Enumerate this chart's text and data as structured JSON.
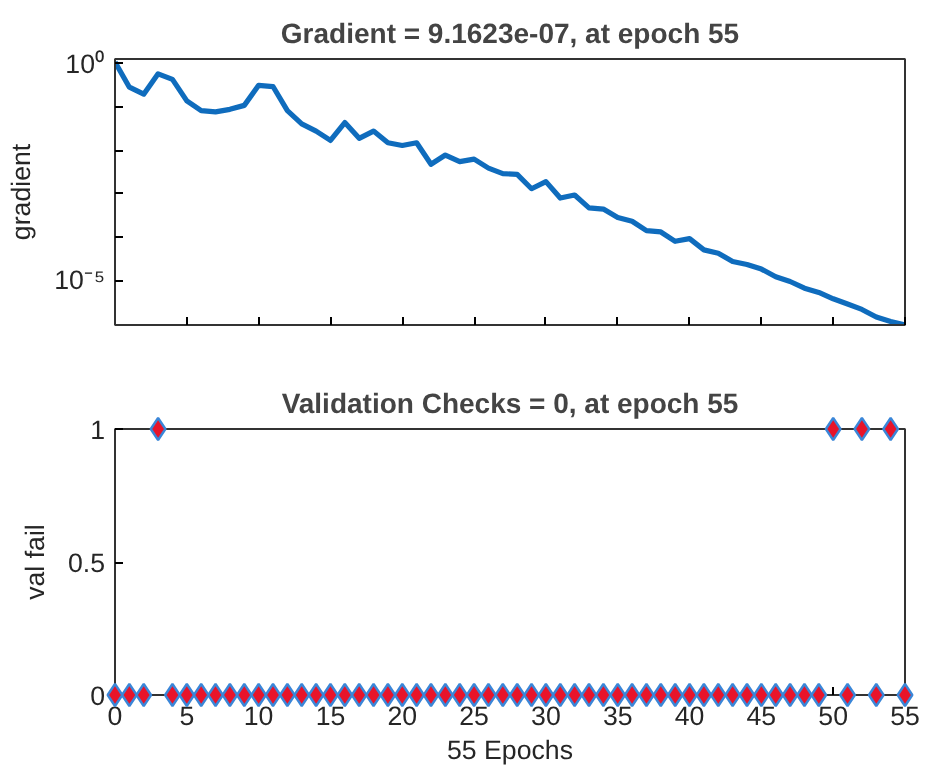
{
  "chart_data": [
    {
      "type": "line",
      "title": "Gradient = 9.1623e-07, at epoch 55",
      "ylabel": "gradient",
      "log": "y",
      "grid": false,
      "tick_labels": "y",
      "xlim": [
        0,
        55
      ],
      "xticks": [
        0,
        5,
        10,
        15,
        20,
        25,
        30,
        35,
        40,
        45,
        50,
        55
      ],
      "ylim": [
        9.1623e-07,
        1.3
      ],
      "yticks": [
        {
          "value": 1e-05,
          "label": "10⁻⁵"
        },
        {
          "value": 0.0001,
          "label": null
        },
        {
          "value": 0.001,
          "label": null
        },
        {
          "value": 0.01,
          "label": null
        },
        {
          "value": 0.1,
          "label": null
        },
        {
          "value": 1,
          "label": "10⁰"
        }
      ],
      "x": [
        0,
        1,
        2,
        3,
        4,
        5,
        6,
        7,
        8,
        9,
        10,
        11,
        12,
        13,
        14,
        15,
        16,
        17,
        18,
        19,
        20,
        21,
        22,
        23,
        24,
        25,
        26,
        27,
        28,
        29,
        30,
        31,
        32,
        33,
        34,
        35,
        36,
        37,
        38,
        39,
        40,
        41,
        42,
        43,
        44,
        45,
        46,
        47,
        48,
        49,
        50,
        51,
        52,
        53,
        54,
        55
      ],
      "series": [
        {
          "color": "#0f6cbd",
          "values": [
            1.1,
            0.29,
            0.2,
            0.59,
            0.44,
            0.14,
            0.083,
            0.078,
            0.089,
            0.11,
            0.32,
            0.3,
            0.083,
            0.041,
            0.028,
            0.017,
            0.044,
            0.019,
            0.028,
            0.015,
            0.013,
            0.015,
            0.0048,
            0.0078,
            0.0055,
            0.0063,
            0.0039,
            0.0029,
            0.0028,
            0.0013,
            0.0019,
            0.00079,
            0.00093,
            0.00047,
            0.00044,
            0.00028,
            0.00023,
            0.00014,
            0.00013,
            7.9e-05,
            9.1e-05,
            5e-05,
            4.2e-05,
            2.7e-05,
            2.3e-05,
            1.8e-05,
            1.2e-05,
            9.3e-06,
            6.5e-06,
            5.2e-06,
            3.7e-06,
            2.8e-06,
            2.1e-06,
            1.4e-06,
            1.1e-06,
            9.1623e-07
          ]
        }
      ]
    },
    {
      "type": "scatter",
      "title": "Validation Checks = 0, at epoch 55",
      "xlabel": "55 Epochs",
      "ylabel": "val fail",
      "marker": "diamond",
      "grid": false,
      "xlim": [
        0,
        55
      ],
      "xticks": [
        0,
        5,
        10,
        15,
        20,
        25,
        30,
        35,
        40,
        45,
        50,
        55
      ],
      "ylim": [
        0,
        1
      ],
      "yticks": [
        0,
        0.5,
        1
      ],
      "x": [
        0,
        1,
        2,
        3,
        4,
        5,
        6,
        7,
        8,
        9,
        10,
        11,
        12,
        13,
        14,
        15,
        16,
        17,
        18,
        19,
        20,
        21,
        22,
        23,
        24,
        25,
        26,
        27,
        28,
        29,
        30,
        31,
        32,
        33,
        34,
        35,
        36,
        37,
        38,
        39,
        40,
        41,
        42,
        43,
        44,
        45,
        46,
        47,
        48,
        49,
        50,
        51,
        52,
        53,
        54,
        55
      ],
      "series": [
        {
          "color": "#e8142a",
          "values": [
            0,
            0,
            0,
            1,
            0,
            0,
            0,
            0,
            0,
            0,
            0,
            0,
            0,
            0,
            0,
            0,
            0,
            0,
            0,
            0,
            0,
            0,
            0,
            0,
            0,
            0,
            0,
            0,
            0,
            0,
            0,
            0,
            0,
            0,
            0,
            0,
            0,
            0,
            0,
            0,
            0,
            0,
            0,
            0,
            0,
            0,
            0,
            0,
            0,
            0,
            1,
            0,
            1,
            0,
            1,
            0
          ]
        }
      ]
    }
  ]
}
